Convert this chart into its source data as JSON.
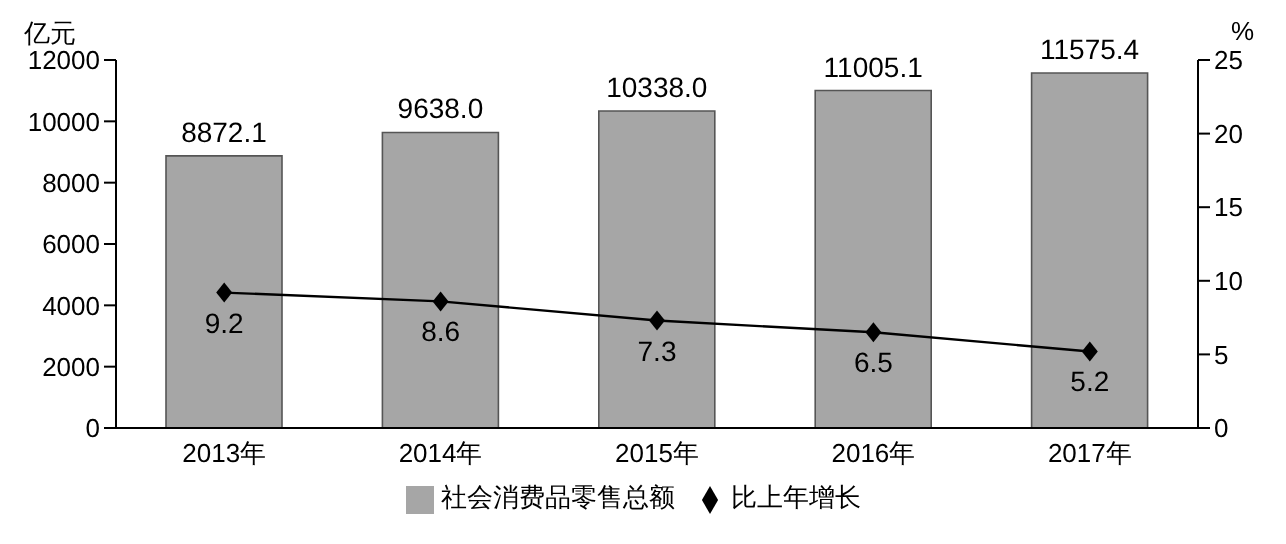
{
  "chart_data": {
    "type": "bar",
    "categories": [
      "2013年",
      "2014年",
      "2015年",
      "2016年",
      "2017年"
    ],
    "ylabel": "亿元",
    "y2label": "%",
    "series": [
      {
        "name": "社会消费品零售总额",
        "color": "#a6a6a6",
        "values": [
          8872.1,
          9638.0,
          10338.0,
          11005.1,
          11575.4
        ],
        "value_labels": [
          "8872.1",
          "9638.0",
          "10338.0",
          "11005.1",
          "11575.4"
        ]
      },
      {
        "name": "比上年增长",
        "type": "line",
        "axis": "y2",
        "color": "#000000",
        "values": [
          9.2,
          8.6,
          7.3,
          6.5,
          5.2
        ],
        "value_labels": [
          "9.2",
          "8.6",
          "7.3",
          "6.5",
          "5.2"
        ]
      }
    ],
    "ylim": [
      0,
      12000
    ],
    "yticks": [
      0,
      2000,
      4000,
      6000,
      8000,
      10000,
      12000
    ],
    "y2lim": [
      0,
      25
    ],
    "y2ticks": [
      0,
      5,
      10,
      15,
      20,
      25
    ],
    "grid": false,
    "legend": "bottom",
    "marker": "diamond",
    "line_style": "solid"
  }
}
